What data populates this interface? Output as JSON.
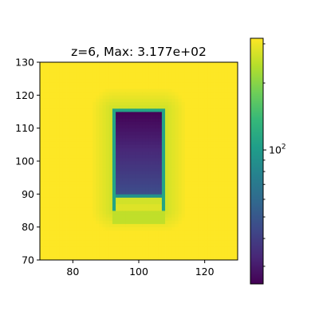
{
  "chart_data": {
    "type": "heatmap",
    "title": "z=6, Max: 3.177e+02",
    "xlabel": "",
    "ylabel": "",
    "xlim": [
      70,
      130
    ],
    "ylim": [
      70,
      130
    ],
    "x_ticks": [
      80,
      100,
      120
    ],
    "y_ticks": [
      70,
      80,
      90,
      100,
      110,
      120,
      130
    ],
    "x_tick_labels": [
      "80",
      "100",
      "120"
    ],
    "y_tick_labels": [
      "70",
      "80",
      "90",
      "100",
      "110",
      "120",
      "130"
    ],
    "colormap": "viridis",
    "color_scale": "log",
    "max_value": 317.7,
    "grid": false,
    "colorbar": {
      "scale": "log",
      "range": [
        25,
        317.7
      ],
      "major_tick_value": 100,
      "major_tick_label": "10^2"
    },
    "field": {
      "background_value": 317.7,
      "well_region": {
        "x": [
          92,
          108
        ],
        "y": [
          85,
          116
        ]
      },
      "wall_value": 110,
      "interior_top_value": 25,
      "interior_bottom_value": 45,
      "bottom_strip_value": 280,
      "halo_value": 260
    },
    "colors": {
      "viridis": [
        "#440154",
        "#482878",
        "#3e4989",
        "#31688e",
        "#26828e",
        "#1f9e89",
        "#35b779",
        "#6ece58",
        "#b5de2b",
        "#fde725"
      ]
    }
  }
}
